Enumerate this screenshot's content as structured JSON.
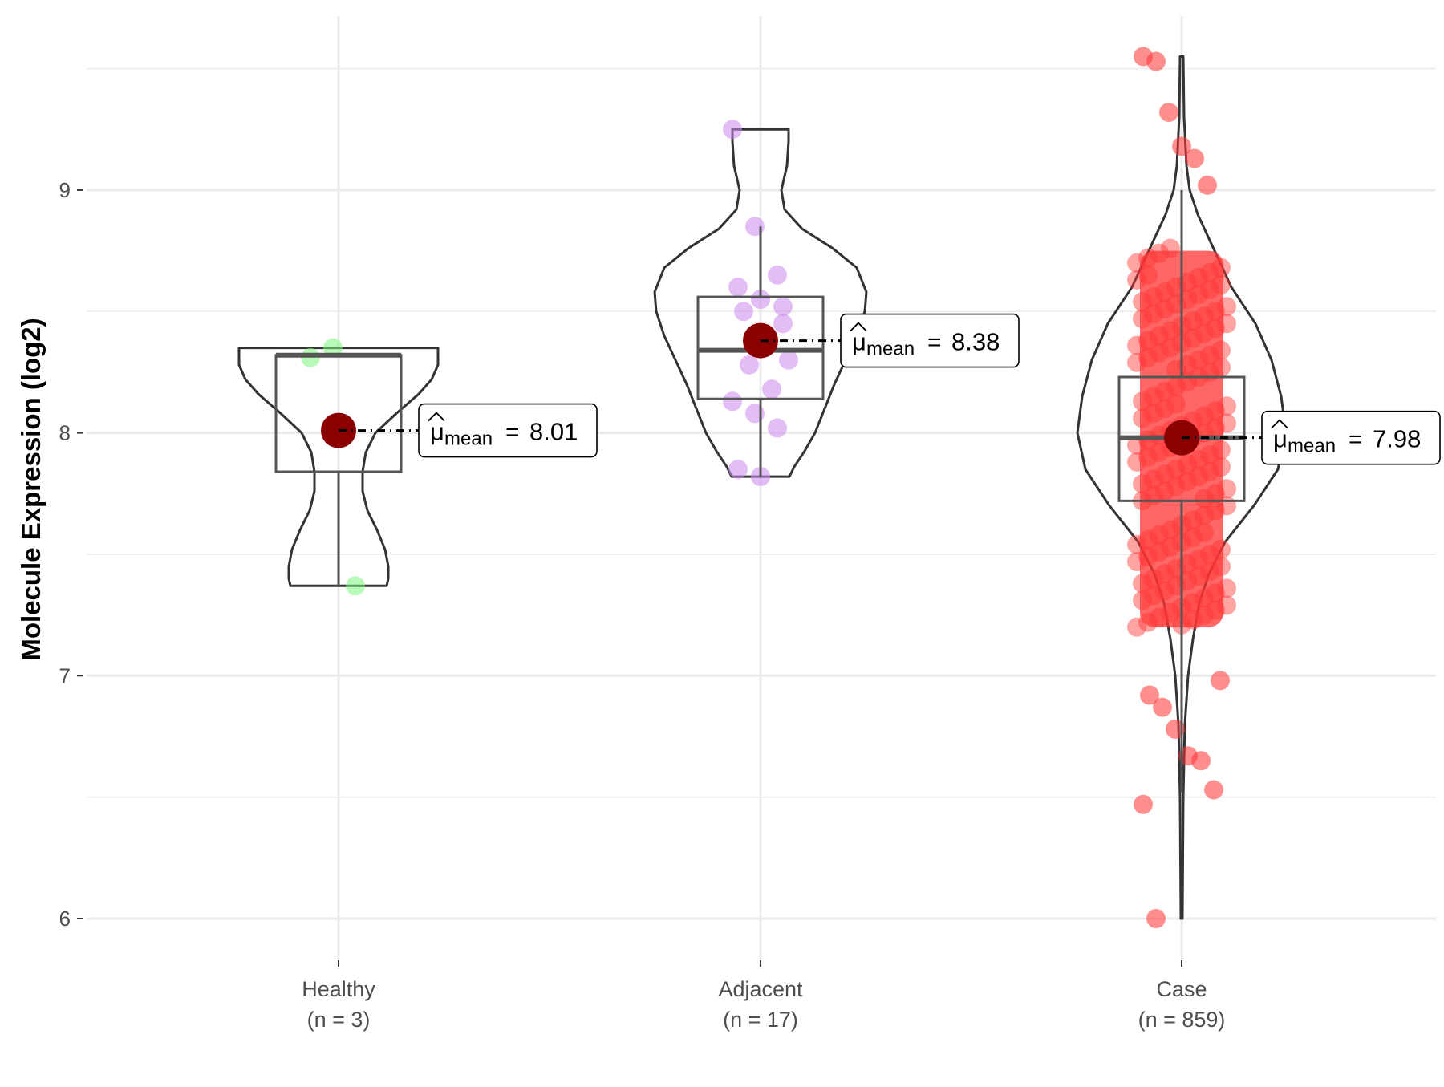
{
  "chart_data": {
    "type": "violin",
    "title": "",
    "xlabel": "",
    "ylabel": "Molecule Expression (log2)",
    "ylim": [
      5.9,
      9.7
    ],
    "yticks": [
      6,
      7,
      8,
      9
    ],
    "ytick_labels": [
      "6",
      "7",
      "8",
      "9"
    ],
    "groups": [
      {
        "name": "Healthy",
        "count_label": "(n = 3)",
        "color": "#7cf57c",
        "mean": 8.01,
        "mean_label": "8.01",
        "box": {
          "q1": 7.84,
          "median": 8.32,
          "q3": 8.32,
          "whisker_low": 7.37,
          "whisker_high": 8.32
        },
        "violin_range": [
          7.37,
          8.35
        ],
        "points": [
          8.31,
          8.35,
          7.37
        ]
      },
      {
        "name": "Adjacent",
        "count_label": "(n = 17)",
        "color": "#cc88ee",
        "mean": 8.38,
        "mean_label": "8.38",
        "box": {
          "q1": 8.14,
          "median": 8.34,
          "q3": 8.56,
          "whisker_low": 7.82,
          "whisker_high": 8.85
        },
        "violin_range": [
          7.82,
          9.25
        ],
        "points": [
          9.25,
          8.85,
          8.65,
          8.6,
          8.55,
          8.52,
          8.5,
          8.38,
          8.3,
          8.28,
          8.18,
          8.13,
          8.08,
          8.02,
          7.85,
          7.82,
          8.45
        ]
      },
      {
        "name": "Case",
        "count_label": "(n = 859)",
        "color": "#ff3333",
        "mean": 7.98,
        "mean_label": "7.98",
        "box": {
          "q1": 7.72,
          "median": 7.98,
          "q3": 8.23,
          "whisker_low": 6.52,
          "whisker_high": 9.0
        },
        "violin_range": [
          6.0,
          9.55
        ],
        "points_outliers": [
          9.55,
          9.53,
          9.32,
          9.18,
          9.13,
          9.02,
          6.98,
          6.92,
          6.87,
          6.78,
          6.67,
          6.65,
          6.53,
          6.47,
          6.0
        ]
      }
    ],
    "mean_label_prefix": "μ",
    "mean_label_subscript": "mean",
    "mean_label_equals": "=",
    "mean_marker_color": "#8b0000",
    "grid": true
  }
}
